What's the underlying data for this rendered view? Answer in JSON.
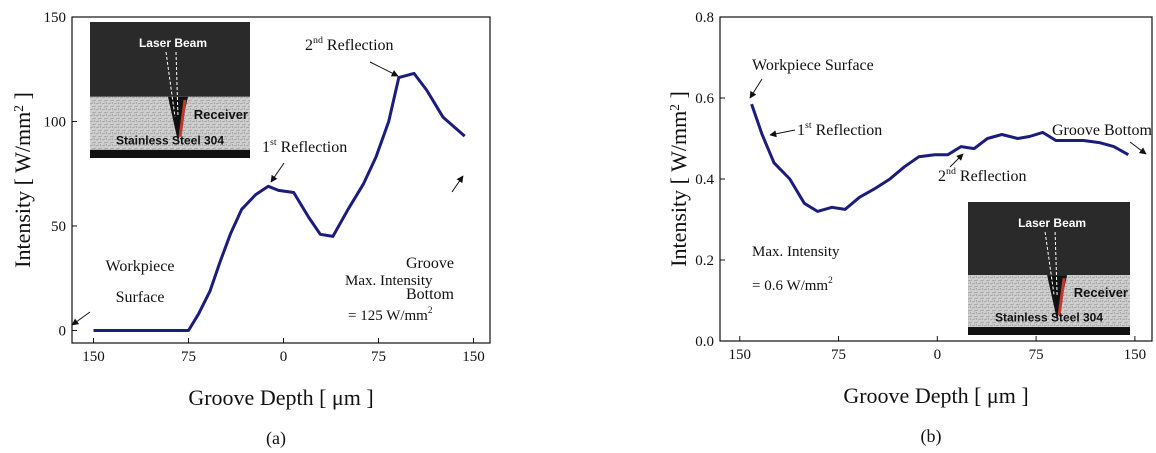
{
  "chart_data": [
    {
      "type": "line",
      "caption": "(a)",
      "x_label": "Groove Depth [ μm ]",
      "y_label": [
        "Intensity [ W/mm",
        {
          "sup": "2"
        },
        " ]"
      ],
      "xlim": [
        -167,
        163
      ],
      "ylim": [
        -6,
        150
      ],
      "xticks": [
        {
          "value": -150,
          "label": "150"
        },
        {
          "value": -75,
          "label": "75"
        },
        0,
        75,
        150
      ],
      "yticks": [
        0,
        50,
        100,
        150
      ],
      "color": "#1c1c7c",
      "x": [
        -150,
        -75,
        -67,
        -58,
        -50,
        -42,
        -33,
        -22,
        -12,
        -4,
        8,
        20,
        29,
        39,
        51,
        63,
        73,
        83,
        91,
        103,
        113,
        126,
        143
      ],
      "values": [
        0,
        0,
        8,
        19,
        33,
        46,
        58,
        65,
        69,
        67,
        66,
        54,
        46,
        45,
        58,
        70,
        83,
        100,
        121,
        123,
        115,
        102,
        93
      ],
      "annotations": [
        [
          "Workpiece"
        ],
        [
          "Surface"
        ],
        [
          "1",
          {
            "sup": "st"
          },
          " Reflection"
        ],
        [
          "2",
          {
            "sup": "nd"
          },
          " Reflection"
        ],
        [
          "Groove"
        ],
        [
          "Bottom"
        ],
        [
          "Max. Intensity"
        ],
        [
          "= 125 W/mm",
          {
            "sup": "2"
          }
        ]
      ],
      "inset_labels": [
        "Laser Beam",
        "Receiver",
        "Stainless Steel 304"
      ]
    },
    {
      "type": "line",
      "caption": "(b)",
      "x_label": "Groove Depth [ μm ]",
      "y_label": [
        "Intensity [ W/mm",
        {
          "sup": "2"
        },
        " ]"
      ],
      "xlim": [
        -165,
        163
      ],
      "ylim": [
        0,
        0.8
      ],
      "xticks": [
        {
          "value": -150,
          "label": "150"
        },
        {
          "value": -75,
          "label": "75"
        },
        0,
        75,
        150
      ],
      "yticks": [
        {
          "value": 0,
          "label": "0.0"
        },
        0.2,
        0.4,
        0.6,
        0.8
      ],
      "color": "#1c1c7c",
      "x": [
        -141,
        -133,
        -124,
        -112,
        -101,
        -91,
        -80,
        -70,
        -59,
        -48,
        -36,
        -25,
        -14,
        -2,
        8,
        18,
        28,
        38,
        49,
        61,
        70,
        80,
        90,
        100,
        111,
        123,
        134,
        145
      ],
      "values": [
        0.585,
        0.51,
        0.44,
        0.4,
        0.34,
        0.32,
        0.33,
        0.325,
        0.355,
        0.375,
        0.4,
        0.43,
        0.455,
        0.46,
        0.46,
        0.48,
        0.475,
        0.5,
        0.51,
        0.5,
        0.505,
        0.515,
        0.495,
        0.495,
        0.495,
        0.49,
        0.48,
        0.46
      ],
      "annotations": [
        [
          "Workpiece Surface"
        ],
        [
          "1",
          {
            "sup": "st"
          },
          " Reflection"
        ],
        [
          "2",
          {
            "sup": "nd"
          },
          " Reflection"
        ],
        [
          "Groove Bottom"
        ],
        [
          "Max. Intensity"
        ],
        [
          "= 0.6 W/mm",
          {
            "sup": "2"
          }
        ]
      ],
      "inset_labels": [
        "Laser Beam",
        "Receiver",
        "Stainless Steel 304"
      ]
    }
  ]
}
